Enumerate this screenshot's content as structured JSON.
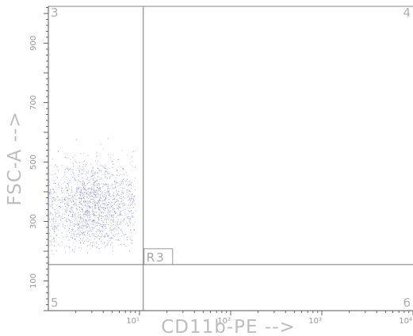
{
  "chart_data": {
    "type": "scatter",
    "title": "",
    "xlabel": "CD11b-PE -->",
    "ylabel": "FSC-A -->",
    "x_scale": "log",
    "xlim": [
      1,
      10000
    ],
    "ylim": [
      0,
      1024
    ],
    "x_tick_labels": [
      "10¹",
      "10²",
      "10³",
      "10⁴"
    ],
    "x_tick_values": [
      10,
      100,
      1000,
      10000
    ],
    "y_tick_labels": [
      "100",
      "300",
      "500",
      "700",
      "900"
    ],
    "y_tick_values": [
      100,
      300,
      500,
      700,
      900
    ],
    "quadrant_gates": {
      "x": 11,
      "y": 155
    },
    "quadrant_labels": [
      "3",
      "4",
      "5",
      "6"
    ],
    "region_label": "R3",
    "population": {
      "color": "#7b7bd6",
      "x_range": [
        1,
        9
      ],
      "y_range": [
        190,
        580
      ],
      "center": [
        3,
        350
      ],
      "events_approx": 1800
    },
    "grid": false
  }
}
